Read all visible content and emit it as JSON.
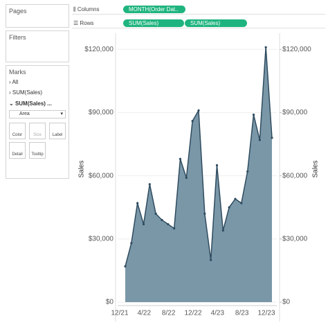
{
  "pages": {
    "title": "Pages"
  },
  "filters": {
    "title": "Filters"
  },
  "marks": {
    "title": "Marks",
    "all": "All",
    "card1": "SUM(Sales)",
    "card2": "SUM(Sales) ...",
    "mark_type": "Area",
    "buttons": [
      "Color",
      "Size",
      "Label",
      "Detail",
      "Tooltip"
    ]
  },
  "shelves": {
    "columns_label": "Columns",
    "columns_pill": "MONTH(Order Dat..",
    "rows_label": "Rows",
    "rows_pills": [
      "SUM(Sales)",
      "SUM(Sales)"
    ]
  },
  "chart_data": {
    "type": "area",
    "ylabel": "Sales",
    "y2label": "Sales",
    "categories": [
      "12/21",
      null,
      null,
      null,
      "4/22",
      null,
      null,
      null,
      "8/22",
      null,
      null,
      null,
      "12/22",
      null,
      null,
      null,
      "4/23",
      null,
      null,
      null,
      "8/23",
      null,
      null,
      null,
      "12/23"
    ],
    "series": [
      {
        "name": "SUM(Sales)",
        "color": "#7a97a8",
        "line_color": "#2e4b5f",
        "values": [
          17000,
          28000,
          47000,
          37000,
          56000,
          42000,
          39000,
          37000,
          35000,
          68000,
          59000,
          86000,
          91000,
          42000,
          20000,
          65000,
          34000,
          45000,
          49000,
          47000,
          62000,
          89000,
          77000,
          121000,
          78000
        ]
      }
    ],
    "ylim": [
      0,
      127000
    ],
    "yticks": [
      {
        "value": 0,
        "label": "$0"
      },
      {
        "value": 30000,
        "label": "$30,000"
      },
      {
        "value": 60000,
        "label": "$60,000"
      },
      {
        "value": 90000,
        "label": "$90,000"
      },
      {
        "value": 120000,
        "label": "$120,000"
      }
    ],
    "y2lim": [
      0,
      127000
    ],
    "y2ticks": [
      {
        "value": 0,
        "label": "$0"
      },
      {
        "value": 30000,
        "label": "$30,000"
      },
      {
        "value": 60000,
        "label": "$60,000"
      },
      {
        "value": 90000,
        "label": "$90,000"
      },
      {
        "value": 120000,
        "label": "$120,000"
      }
    ],
    "grid": true
  }
}
